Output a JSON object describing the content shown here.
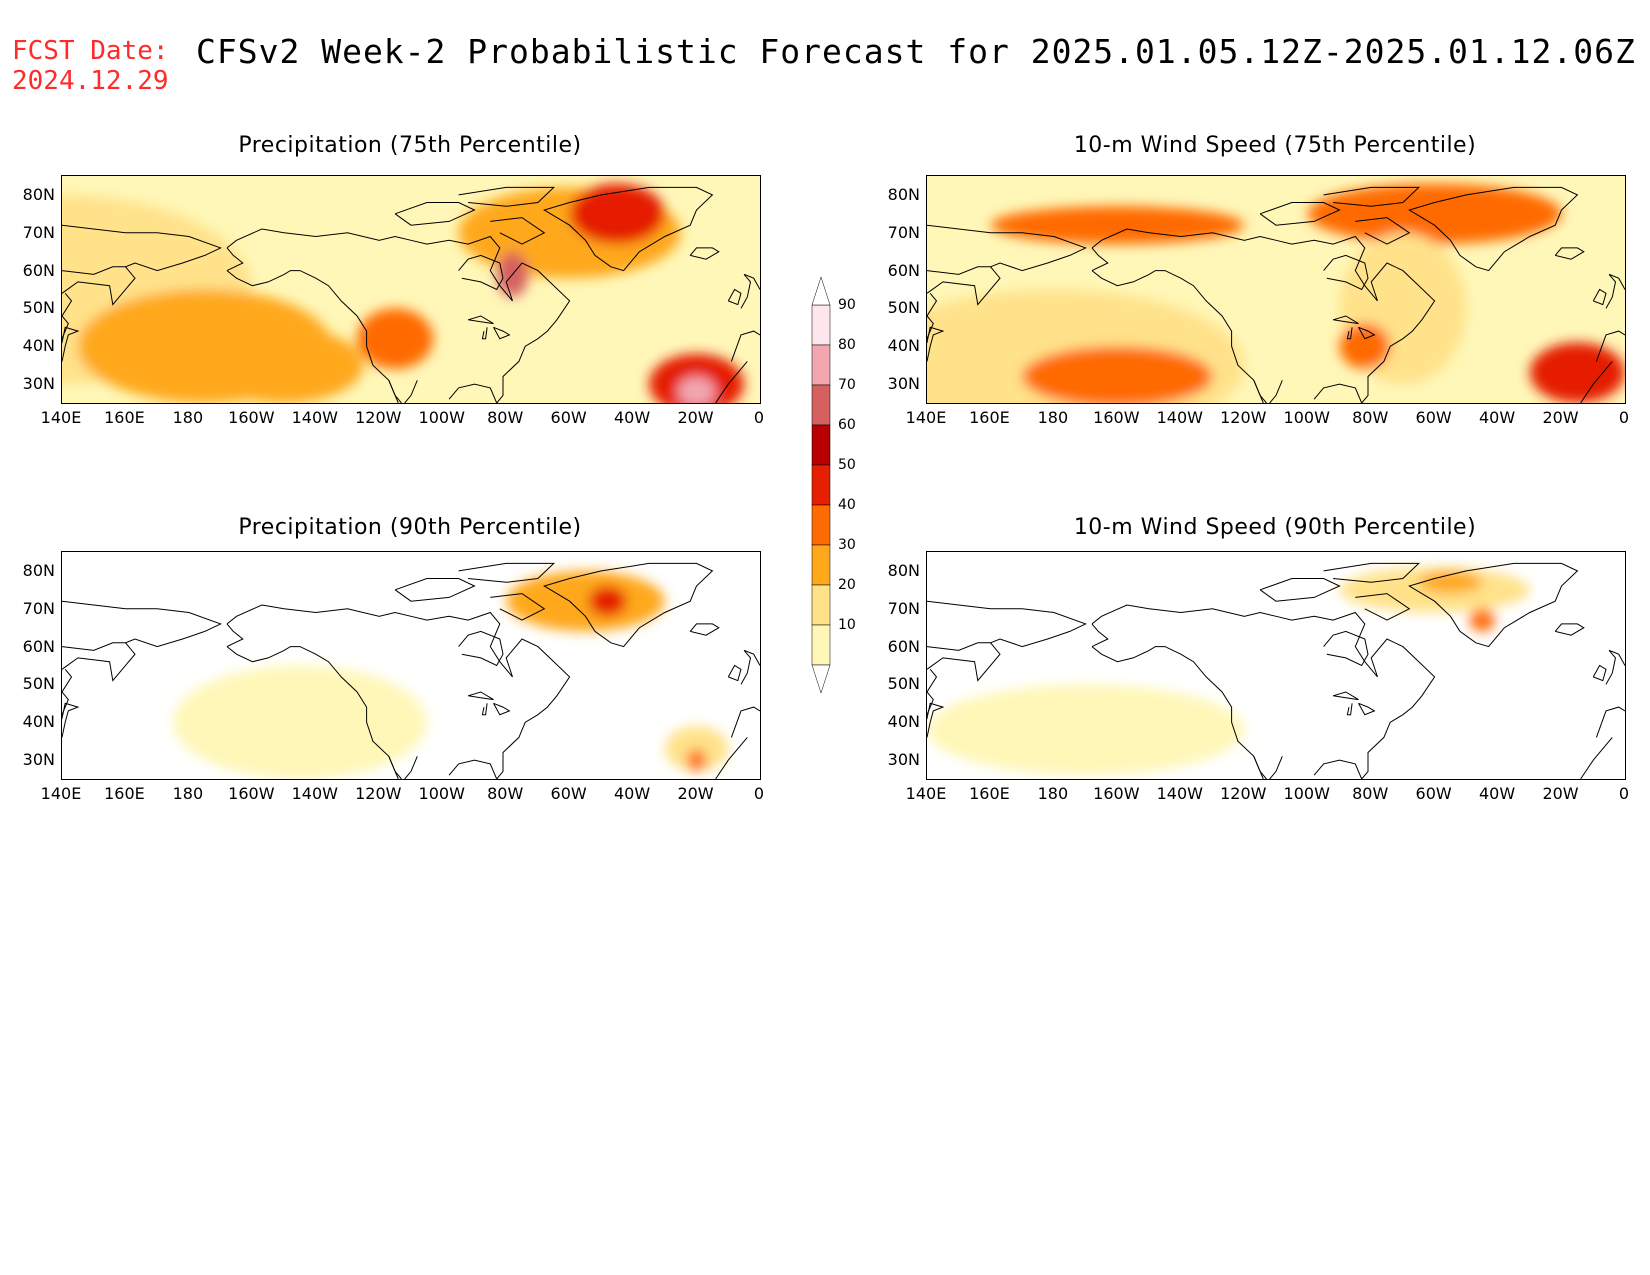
{
  "header": {
    "fcst_label": "FCST Date:",
    "fcst_date": "2024.12.29",
    "title": "CFSv2 Week-2 Probabilistic Forecast for 2025.01.05.12Z-2025.01.12.06Z"
  },
  "lat_ticks": [
    "80N",
    "70N",
    "60N",
    "50N",
    "40N",
    "30N"
  ],
  "lon_ticks": [
    "140E",
    "160E",
    "180",
    "160W",
    "140W",
    "120W",
    "100W",
    "80W",
    "60W",
    "40W",
    "20W",
    "0"
  ],
  "colorbar": {
    "levels": [
      "10",
      "20",
      "30",
      "40",
      "50",
      "60",
      "70",
      "80",
      "90"
    ],
    "colors": [
      "#fff7b8",
      "#ffe28a",
      "#ffa81a",
      "#ff6b00",
      "#e51f00",
      "#b80000",
      "#d66060",
      "#f2a6b0",
      "#ffe6ec"
    ]
  },
  "panels": [
    {
      "id": "precip75",
      "title": "Precipitation (75th Percentile)",
      "blobs": [
        {
          "lon": 140,
          "lat": 55,
          "rx": 60,
          "ry": 25,
          "level": 1
        },
        {
          "lon": 185,
          "lat": 40,
          "rx": 40,
          "ry": 15,
          "level": 2
        },
        {
          "lon": 210,
          "lat": 35,
          "rx": 25,
          "ry": 10,
          "level": 2
        },
        {
          "lon": 245,
          "lat": 42,
          "rx": 12,
          "ry": 8,
          "level": 3
        },
        {
          "lon": 300,
          "lat": 70,
          "rx": 35,
          "ry": 12,
          "level": 2
        },
        {
          "lon": 315,
          "lat": 75,
          "rx": 15,
          "ry": 8,
          "level": 4
        },
        {
          "lon": 282,
          "lat": 59,
          "rx": 5,
          "ry": 6,
          "level": 6
        },
        {
          "lon": 340,
          "lat": 30,
          "rx": 15,
          "ry": 8,
          "level": 4
        },
        {
          "lon": 340,
          "lat": 28,
          "rx": 6,
          "ry": 4,
          "level": 7
        }
      ]
    },
    {
      "id": "wind75",
      "title": "10-m Wind Speed (75th Percentile)",
      "blobs": [
        {
          "lon": 180,
          "lat": 35,
          "rx": 60,
          "ry": 20,
          "level": 1
        },
        {
          "lon": 200,
          "lat": 32,
          "rx": 30,
          "ry": 8,
          "level": 3
        },
        {
          "lon": 200,
          "lat": 72,
          "rx": 40,
          "ry": 5,
          "level": 3
        },
        {
          "lon": 300,
          "lat": 75,
          "rx": 40,
          "ry": 8,
          "level": 3
        },
        {
          "lon": 290,
          "lat": 50,
          "rx": 20,
          "ry": 20,
          "level": 1
        },
        {
          "lon": 345,
          "lat": 33,
          "rx": 15,
          "ry": 8,
          "level": 4
        },
        {
          "lon": 278,
          "lat": 40,
          "rx": 8,
          "ry": 6,
          "level": 3
        }
      ]
    },
    {
      "id": "precip90",
      "title": "Precipitation (90th Percentile)",
      "blobs": [
        {
          "lon": 215,
          "lat": 40,
          "rx": 40,
          "ry": 15,
          "level": 0
        },
        {
          "lon": 305,
          "lat": 72,
          "rx": 25,
          "ry": 8,
          "level": 2
        },
        {
          "lon": 312,
          "lat": 72,
          "rx": 6,
          "ry": 4,
          "level": 4
        },
        {
          "lon": 340,
          "lat": 33,
          "rx": 10,
          "ry": 6,
          "level": 1
        },
        {
          "lon": 340,
          "lat": 30,
          "rx": 3,
          "ry": 3,
          "level": 3
        }
      ]
    },
    {
      "id": "wind90",
      "title": "10-m Wind Speed (90th Percentile)",
      "blobs": [
        {
          "lon": 190,
          "lat": 38,
          "rx": 50,
          "ry": 12,
          "level": 0
        },
        {
          "lon": 300,
          "lat": 75,
          "rx": 30,
          "ry": 6,
          "level": 1
        },
        {
          "lon": 305,
          "lat": 77,
          "rx": 10,
          "ry": 3,
          "level": 2
        },
        {
          "lon": 315,
          "lat": 67,
          "rx": 4,
          "ry": 3,
          "level": 3
        }
      ]
    }
  ]
}
